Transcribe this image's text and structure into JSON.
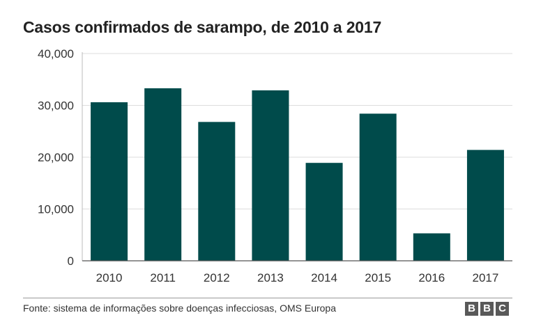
{
  "chart_data": {
    "type": "bar",
    "title": "Casos confirmados de sarampo, de 2010 a 2017",
    "xlabel": "",
    "ylabel": "",
    "categories": [
      "2010",
      "2011",
      "2012",
      "2013",
      "2014",
      "2015",
      "2016",
      "2017"
    ],
    "values": [
      30600,
      33300,
      26800,
      32900,
      18900,
      28400,
      5300,
      21400
    ],
    "ylim": [
      0,
      40000
    ],
    "yticks": [
      0,
      10000,
      20000,
      30000,
      40000
    ],
    "ytick_labels": [
      "0",
      "10,000",
      "20,000",
      "30,000",
      "40,000"
    ],
    "grid": true,
    "bar_color": "#004b4b"
  },
  "footer": {
    "source": "Fonte: sistema de informações sobre doenças infecciosas, OMS Europa",
    "logo_letters": [
      "B",
      "B",
      "C"
    ]
  }
}
